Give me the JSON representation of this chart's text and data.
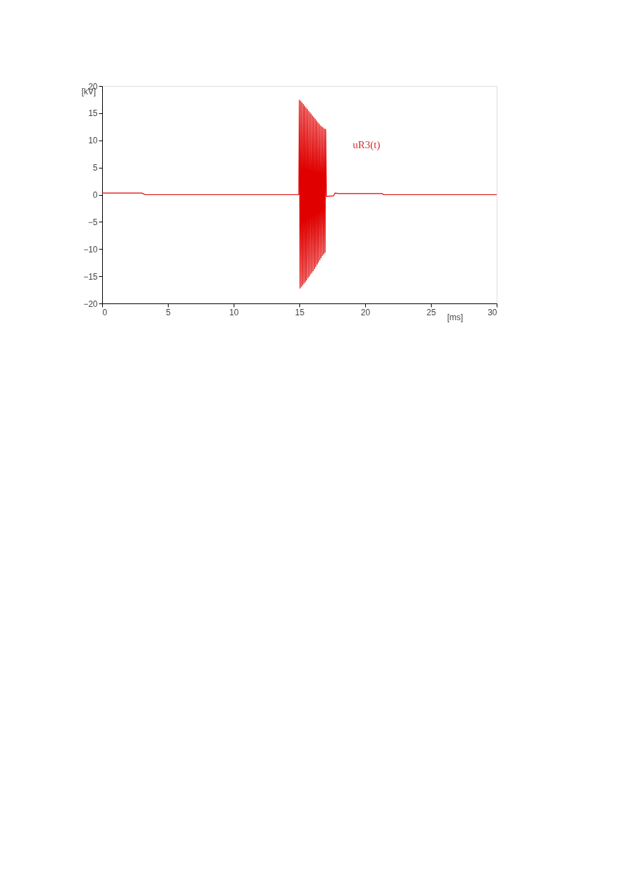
{
  "chart_data": {
    "type": "line",
    "xlabel": "[ms]",
    "ylabel": "[kV]",
    "xlim": [
      0,
      30
    ],
    "ylim": [
      -20,
      20
    ],
    "xticks": [
      0,
      5,
      10,
      15,
      20,
      25,
      30
    ],
    "yticks": [
      -20,
      -15,
      -10,
      -5,
      0,
      5,
      10,
      15,
      20
    ],
    "grid": false,
    "marker": "none",
    "line_style": "solid",
    "annotations": [
      "uR3(t)"
    ],
    "series": [
      {
        "color": "#e00000",
        "x": [
          0,
          3,
          3.3,
          14.95,
          15.0,
          15.05,
          15.1,
          15.15,
          15.2,
          15.25,
          15.3,
          15.35,
          15.4,
          15.45,
          15.5,
          15.55,
          15.6,
          15.65,
          15.7,
          15.75,
          15.8,
          15.85,
          15.9,
          15.95,
          16.0,
          16.05,
          16.1,
          16.15,
          16.2,
          16.25,
          16.3,
          16.35,
          16.4,
          16.45,
          16.5,
          16.55,
          16.6,
          16.65,
          16.7,
          16.75,
          16.8,
          16.85,
          16.9,
          16.95,
          17.0,
          17.05,
          17.6,
          17.7,
          18,
          21.3,
          21.4,
          30
        ],
        "values": [
          0.3,
          0.3,
          0,
          0,
          17.4,
          -17.2,
          17.2,
          -16.9,
          16.9,
          -16.6,
          16.6,
          -16.3,
          16.3,
          -16.0,
          16.0,
          -15.7,
          15.7,
          -15.3,
          15.4,
          -15.0,
          15.1,
          -14.6,
          14.8,
          -14.3,
          14.5,
          -14.0,
          14.2,
          -13.6,
          13.9,
          -13.2,
          13.6,
          -12.8,
          13.3,
          -12.4,
          13.0,
          -12.0,
          12.7,
          -11.6,
          12.5,
          -11.2,
          12.3,
          -10.9,
          12.1,
          -10.6,
          12.0,
          -0.3,
          -0.2,
          0.3,
          0.2,
          0.2,
          0,
          0
        ]
      }
    ]
  }
}
